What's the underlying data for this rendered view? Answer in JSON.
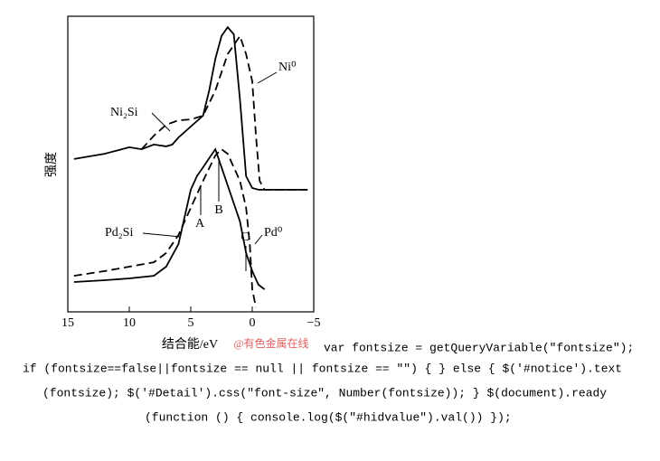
{
  "chart_data": {
    "type": "line",
    "xlabel": "结合能/eV",
    "ylabel": "强度",
    "watermark": "@有色金属在线",
    "xlim": [
      15,
      -5
    ],
    "xticks": [
      15,
      10,
      5,
      0,
      {
        "value": -5,
        "label": "−5"
      }
    ],
    "ylim": [
      0,
      100
    ],
    "series": [
      {
        "name": "Ni₂Si",
        "color": "#000000",
        "dashed": false,
        "x": [
          14.5,
          12,
          10,
          9,
          8,
          7,
          6.5,
          6,
          5,
          4,
          3.5,
          3,
          2.5,
          2,
          1.5,
          1,
          0.5,
          0,
          -0.5,
          -4.5
        ],
        "values": [
          51.7,
          53.5,
          55.7,
          55,
          56.6,
          56,
          56.6,
          59,
          62.7,
          66.4,
          74.9,
          85.6,
          93.3,
          96.3,
          93.9,
          71.9,
          45.9,
          41.9,
          41.3,
          41.3
        ]
      },
      {
        "name": "Ni⁰",
        "color": "#000000",
        "dashed": true,
        "x": [
          9,
          8,
          7,
          6,
          5,
          4,
          3,
          2,
          1,
          0.5,
          0,
          -0.3,
          -0.6,
          -1,
          -4.5
        ],
        "values": [
          55,
          59.6,
          63.3,
          64.8,
          65.1,
          66.4,
          74.9,
          87.2,
          93.3,
          87.2,
          78,
          59.6,
          44.3,
          41.3,
          41.3
        ]
      },
      {
        "name": "Pd₂Si",
        "color": "#000000",
        "dashed": false,
        "x": [
          14.5,
          12,
          10,
          8,
          7,
          6,
          5,
          4.5,
          4,
          3.5,
          3,
          2.5,
          2,
          1.5,
          1,
          0.5,
          0,
          -0.5,
          -1
        ],
        "values": [
          10.1,
          10.7,
          11.3,
          12.2,
          15.3,
          22.9,
          41.3,
          45.9,
          48.9,
          52,
          55,
          48.9,
          42.8,
          36.7,
          30.6,
          19.9,
          13.8,
          9.2,
          7.6
        ]
      },
      {
        "name": "Pd⁰",
        "color": "#000000",
        "dashed": true,
        "x": [
          14.5,
          12,
          10,
          8,
          7,
          6,
          5,
          4,
          3,
          2.5,
          2,
          1,
          0.5,
          0.2,
          0,
          -0.3
        ],
        "values": [
          12.2,
          13.8,
          15.3,
          16.8,
          19.9,
          26,
          35.2,
          44.3,
          52.9,
          55,
          53.5,
          44.3,
          35.2,
          22.9,
          7.6,
          1.5
        ]
      }
    ],
    "annotations": [
      "A",
      "B",
      "C"
    ]
  },
  "code_lines": [
    "var fontsize = getQueryVariable(\"fontsize\");",
    "if (fontsize==false||fontsize == null || fontsize == \"\") { } else { $('#notice').text",
    "(fontsize); $('#Detail').css(\"font-size\", Number(fontsize)); } $(document).ready",
    "(function () { console.log($(\"#hidvalue\").val()) });"
  ]
}
